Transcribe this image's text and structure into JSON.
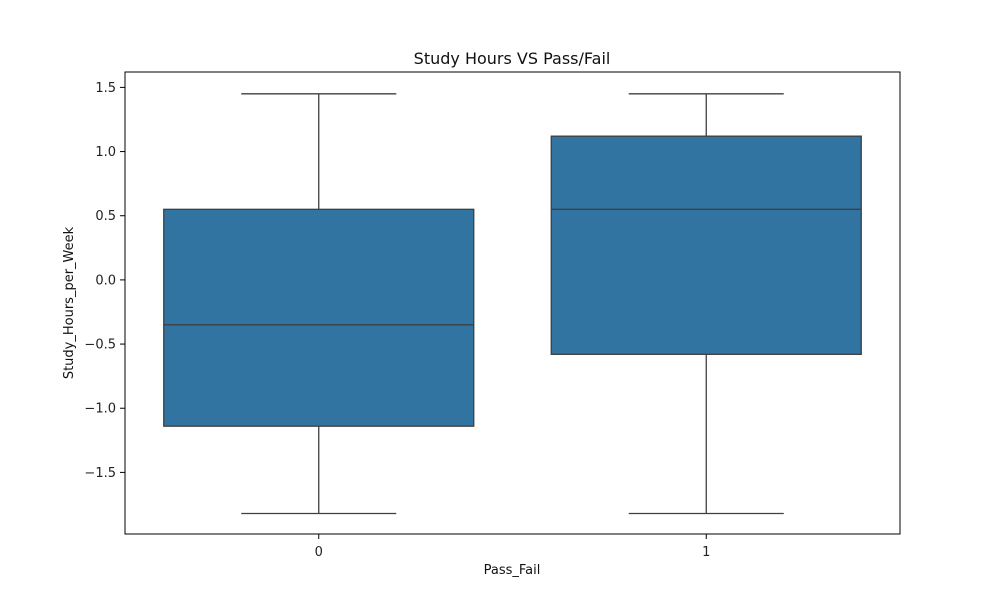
{
  "chart_data": {
    "type": "box",
    "title": "Study Hours VS Pass/Fail",
    "xlabel": "Pass_Fail",
    "ylabel": "Study_Hours_per_Week",
    "categories": [
      "0",
      "1"
    ],
    "ylim": [
      -1.98,
      1.62
    ],
    "yticks": [
      1.5,
      1.0,
      0.5,
      0.0,
      -0.5,
      -1.0,
      -1.5
    ],
    "ytick_labels": [
      "1.5",
      "1.0",
      "0.5",
      "0.0",
      "−0.5",
      "−1.0",
      "−1.5"
    ],
    "boxes": [
      {
        "category": "0",
        "whisker_low": -1.82,
        "q1": -1.14,
        "median": -0.35,
        "q3": 0.55,
        "whisker_high": 1.45
      },
      {
        "category": "1",
        "whisker_low": -1.82,
        "q1": -0.58,
        "median": 0.55,
        "q3": 1.12,
        "whisker_high": 1.45
      }
    ],
    "box_color": "#3274a1",
    "line_color": "#3f3f3f",
    "grid": false,
    "legend": "none"
  }
}
